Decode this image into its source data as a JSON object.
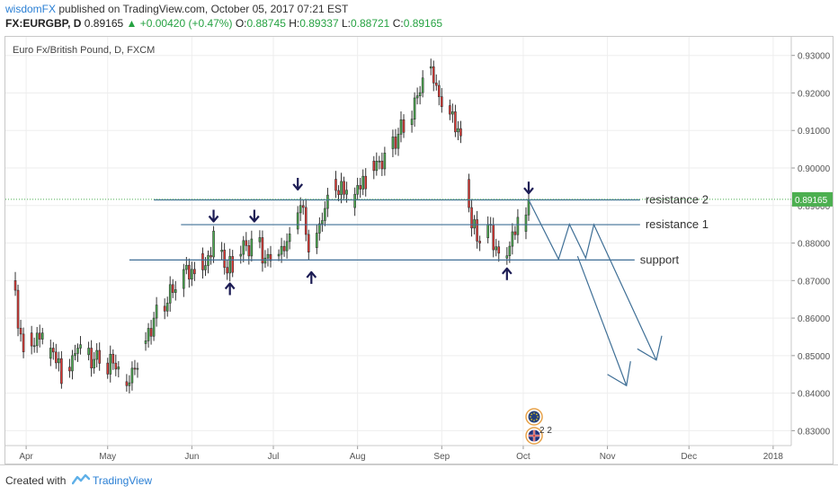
{
  "header": {
    "author": "wisdomFX",
    "published": " published on TradingView.com, October 05, 2017 07:21 EST",
    "symbol": "FX:EURGBP, D ",
    "price": "0.89165 ",
    "change": "▲ +0.00420 (+0.47%)",
    "o_label": " O:",
    "o_value": "0.88745",
    "h_label": " H:",
    "h_value": "0.89337",
    "l_label": " L:",
    "l_value": "0.88721",
    "c_label": " C:",
    "c_value": "0.89165"
  },
  "footer": {
    "created_with": "Created with",
    "brand": "TradingView"
  },
  "colors": {
    "up": "#4caf50",
    "down": "#e53935",
    "line": "#3f6f96",
    "arrow": "#1c1c54",
    "price_tag": "#4caf50"
  },
  "chart_data": {
    "type": "candlestick",
    "title": "Euro Fx/British Pound, D, FXCM",
    "ylim": [
      0.8265,
      0.934
    ],
    "y_ticks": [
      0.83,
      0.84,
      0.85,
      0.86,
      0.87,
      0.88,
      0.89,
      0.9,
      0.91,
      0.92,
      0.93
    ],
    "y_tick_labels": [
      "0.83000",
      "0.84000",
      "0.85000",
      "0.86000",
      "0.87000",
      "0.88000",
      "0.89000",
      "0.90000",
      "0.91000",
      "0.92000",
      "0.93000"
    ],
    "x_labels": [
      {
        "label": "Apr",
        "day": 5
      },
      {
        "label": "May",
        "day": 35
      },
      {
        "label": "Jun",
        "day": 66
      },
      {
        "label": "Jul",
        "day": 96
      },
      {
        "label": "Aug",
        "day": 127
      },
      {
        "label": "Sep",
        "day": 158
      },
      {
        "label": "Oct",
        "day": 188
      },
      {
        "label": "Nov",
        "day": 219
      },
      {
        "label": "Dec",
        "day": 249
      },
      {
        "label": "2018",
        "day": 280
      }
    ],
    "x_range_days": [
      0,
      286
    ],
    "last_price": 0.89165,
    "last_price_label": "0.89165",
    "key_points": [
      {
        "day": 0,
        "close": 0.87
      },
      {
        "day": 4,
        "close": 0.851
      },
      {
        "day": 9,
        "close": 0.856
      },
      {
        "day": 14,
        "close": 0.852
      },
      {
        "day": 19,
        "close": 0.843
      },
      {
        "day": 24,
        "close": 0.852
      },
      {
        "day": 30,
        "close": 0.849
      },
      {
        "day": 37,
        "close": 0.848
      },
      {
        "day": 42,
        "close": 0.842
      },
      {
        "day": 47,
        "close": 0.851
      },
      {
        "day": 52,
        "close": 0.86
      },
      {
        "day": 57,
        "close": 0.864
      },
      {
        "day": 61,
        "close": 0.87
      },
      {
        "day": 66,
        "close": 0.873
      },
      {
        "day": 71,
        "close": 0.874
      },
      {
        "day": 75,
        "close": 0.883
      },
      {
        "day": 79,
        "close": 0.872
      },
      {
        "day": 84,
        "close": 0.877
      },
      {
        "day": 89,
        "close": 0.881
      },
      {
        "day": 93,
        "close": 0.876
      },
      {
        "day": 98,
        "close": 0.877
      },
      {
        "day": 103,
        "close": 0.881
      },
      {
        "day": 106,
        "close": 0.89
      },
      {
        "day": 110,
        "close": 0.877
      },
      {
        "day": 114,
        "close": 0.886
      },
      {
        "day": 118,
        "close": 0.897
      },
      {
        "day": 122,
        "close": 0.893
      },
      {
        "day": 126,
        "close": 0.893
      },
      {
        "day": 131,
        "close": 0.898
      },
      {
        "day": 137,
        "close": 0.904
      },
      {
        "day": 142,
        "close": 0.909
      },
      {
        "day": 147,
        "close": 0.913
      },
      {
        "day": 151,
        "close": 0.924
      },
      {
        "day": 154,
        "close": 0.927
      },
      {
        "day": 157,
        "close": 0.919
      },
      {
        "day": 162,
        "close": 0.915
      },
      {
        "day": 166,
        "close": 0.903
      },
      {
        "day": 169,
        "close": 0.884
      },
      {
        "day": 172,
        "close": 0.88
      },
      {
        "day": 175,
        "close": 0.885
      },
      {
        "day": 178,
        "close": 0.879
      },
      {
        "day": 181,
        "close": 0.876
      },
      {
        "day": 184,
        "close": 0.883
      },
      {
        "day": 187,
        "close": 0.885
      },
      {
        "day": 189,
        "close": 0.8875
      },
      {
        "day": 190,
        "close": 0.89165
      }
    ],
    "lines": [
      {
        "label": "resistance 2",
        "y": 0.8915,
        "x1": 52,
        "x2": 231
      },
      {
        "label": "resistance 1",
        "y": 0.8849,
        "x1": 62,
        "x2": 231
      },
      {
        "label": "support",
        "y": 0.8755,
        "x1": 43,
        "x2": 229
      }
    ],
    "forecast_path": [
      {
        "day": 190,
        "y": 0.8915
      },
      {
        "day": 201,
        "y": 0.8757
      },
      {
        "day": 205,
        "y": 0.885
      },
      {
        "day": 211,
        "y": 0.876
      },
      {
        "day": 214,
        "y": 0.8849
      },
      {
        "day": 237,
        "y": 0.8488
      }
    ],
    "forecast_branch_start": {
      "day": 208,
      "y": 0.8765
    },
    "forecast_branch_end": {
      "day": 226,
      "y": 0.842
    },
    "arrows_down": [
      {
        "day": 74,
        "y": 0.886
      },
      {
        "day": 89,
        "y": 0.886
      },
      {
        "day": 105,
        "y": 0.8945
      },
      {
        "day": 190,
        "y": 0.8935
      }
    ],
    "arrows_up": [
      {
        "day": 80,
        "y": 0.869
      },
      {
        "day": 110,
        "y": 0.872
      },
      {
        "day": 182,
        "y": 0.873
      }
    ],
    "event_markers": [
      {
        "kind": "eu-flag",
        "day": 192,
        "label": ""
      },
      {
        "kind": "uk-flag",
        "day": 192,
        "label": "2 2"
      }
    ]
  }
}
